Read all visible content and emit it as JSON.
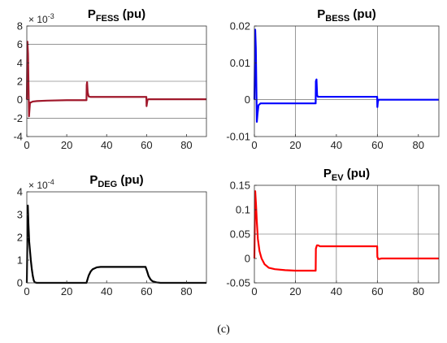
{
  "caption": "(c)",
  "chart_data": [
    {
      "type": "line",
      "title_main": "P",
      "title_sub": "FESS",
      "title_unit": " (pu)",
      "exponent_label": "× 10",
      "exponent_power": "-3",
      "color": "#A0182B",
      "xlim": [
        0,
        90
      ],
      "ylim": [
        -4,
        8
      ],
      "xticks": [
        0,
        20,
        40,
        60,
        80
      ],
      "xtick_labels": [
        "0",
        "20",
        "40",
        "60",
        "80"
      ],
      "yticks": [
        -4,
        -2,
        0,
        2,
        4,
        6,
        8
      ],
      "ytick_labels": [
        "-4",
        "-2",
        "0",
        "2",
        "4",
        "6",
        "8"
      ],
      "grid_x": [],
      "grid_y": [
        -2,
        2,
        6
      ],
      "series": [
        {
          "x": [
            0,
            0.3,
            0.6,
            0.9,
            1.1,
            1.3,
            1.6,
            2,
            3,
            5,
            10,
            20,
            29.9,
            30,
            30.2,
            30.5,
            31,
            32,
            40,
            50,
            59.9,
            60,
            60.2,
            60.5,
            61,
            62,
            70,
            80,
            90
          ],
          "y": [
            0,
            6.3,
            5.0,
            1.0,
            -1.8,
            -1.2,
            -0.3,
            -0.3,
            -0.2,
            -0.15,
            -0.1,
            -0.05,
            -0.05,
            1.6,
            1.9,
            0.8,
            0.35,
            0.3,
            0.3,
            0.3,
            0.3,
            -0.7,
            -0.4,
            0,
            0.05,
            0.05,
            0.05,
            0.05,
            0.05
          ]
        }
      ]
    },
    {
      "type": "line",
      "title_main": "P",
      "title_sub": "BESS",
      "title_unit": " (pu)",
      "exponent_label": "",
      "exponent_power": "",
      "color": "#0000FF",
      "xlim": [
        0,
        90
      ],
      "ylim": [
        -0.01,
        0.02
      ],
      "xticks": [
        0,
        20,
        40,
        60,
        80
      ],
      "xtick_labels": [
        "0",
        "20",
        "40",
        "60",
        "80"
      ],
      "yticks": [
        -0.01,
        0,
        0.01,
        0.02
      ],
      "ytick_labels": [
        "-0.01",
        "0",
        "0.01",
        "0.02"
      ],
      "grid_x": [
        20,
        60
      ],
      "grid_y": [
        0
      ],
      "series": [
        {
          "x": [
            0,
            0.4,
            0.7,
            1.0,
            1.2,
            1.5,
            2,
            3,
            5,
            10,
            20,
            29.9,
            30,
            30.3,
            30.6,
            31,
            40,
            50,
            59.9,
            60,
            60.2,
            60.5,
            61,
            70,
            80,
            90
          ],
          "y": [
            0,
            0.019,
            0.014,
            0.002,
            -0.006,
            -0.004,
            -0.0015,
            -0.001,
            -0.001,
            -0.001,
            -0.001,
            -0.001,
            0.005,
            0.0055,
            0.0012,
            0.0008,
            0.0008,
            0.0008,
            0.0008,
            -0.002,
            -0.0008,
            0,
            0,
            0,
            0,
            0
          ]
        }
      ]
    },
    {
      "type": "line",
      "title_main": "P",
      "title_sub": "DEG",
      "title_unit": " (pu)",
      "exponent_label": "× 10",
      "exponent_power": "-4",
      "color": "#000000",
      "xlim": [
        0,
        90
      ],
      "ylim": [
        0,
        4
      ],
      "xticks": [
        0,
        20,
        40,
        60,
        80
      ],
      "xtick_labels": [
        "0",
        "20",
        "40",
        "60",
        "80"
      ],
      "yticks": [
        0,
        1,
        2,
        3,
        4
      ],
      "ytick_labels": [
        "0",
        "1",
        "2",
        "3",
        "4"
      ],
      "grid_x": [],
      "grid_y": [],
      "series": [
        {
          "x": [
            0,
            0.5,
            0.8,
            1.2,
            1.6,
            2.0,
            2.5,
            3,
            3.5,
            4,
            5,
            10,
            20,
            29.9,
            30.5,
            31,
            32,
            33,
            35,
            37,
            40,
            50,
            59.5,
            60.3,
            61,
            62,
            63,
            65,
            67,
            70,
            80,
            90
          ],
          "y": [
            0,
            3.4,
            2.6,
            1.8,
            1.4,
            1.0,
            0.6,
            0.3,
            0.1,
            0.02,
            0,
            0,
            0,
            0,
            0.18,
            0.32,
            0.5,
            0.6,
            0.68,
            0.7,
            0.7,
            0.7,
            0.7,
            0.5,
            0.3,
            0.15,
            0.07,
            0.02,
            0,
            0,
            0,
            0
          ]
        }
      ]
    },
    {
      "type": "line",
      "title_main": "P",
      "title_sub": "EV",
      "title_unit": " (pu)",
      "exponent_label": "",
      "exponent_power": "",
      "color": "#FF0000",
      "xlim": [
        0,
        90
      ],
      "ylim": [
        -0.05,
        0.15
      ],
      "xticks": [
        0,
        20,
        40,
        60,
        80
      ],
      "xtick_labels": [
        "0",
        "20",
        "40",
        "60",
        "80"
      ],
      "yticks": [
        -0.05,
        0,
        0.05,
        0.1,
        0.15
      ],
      "ytick_labels": [
        "-0.05",
        "0",
        "0.05",
        "0.1",
        "0.15"
      ],
      "grid_x": [
        20,
        40,
        60,
        80
      ],
      "grid_y": [
        0.05
      ],
      "series": [
        {
          "x": [
            0,
            0.4,
            0.8,
            1.2,
            1.7,
            2.5,
            3.5,
            5,
            7,
            10,
            15,
            20,
            29.9,
            30,
            30.5,
            31,
            32,
            35,
            40,
            50,
            59.9,
            60,
            60.5,
            61,
            62,
            70,
            80,
            90
          ],
          "y": [
            0,
            0.138,
            0.11,
            0.075,
            0.04,
            0.015,
            0.0,
            -0.012,
            -0.019,
            -0.022,
            -0.024,
            -0.025,
            -0.025,
            0.02,
            0.027,
            0.027,
            0.025,
            0.025,
            0.025,
            0.025,
            0.025,
            0.003,
            -0.001,
            -0.001,
            0,
            0,
            0,
            0
          ]
        }
      ]
    }
  ]
}
